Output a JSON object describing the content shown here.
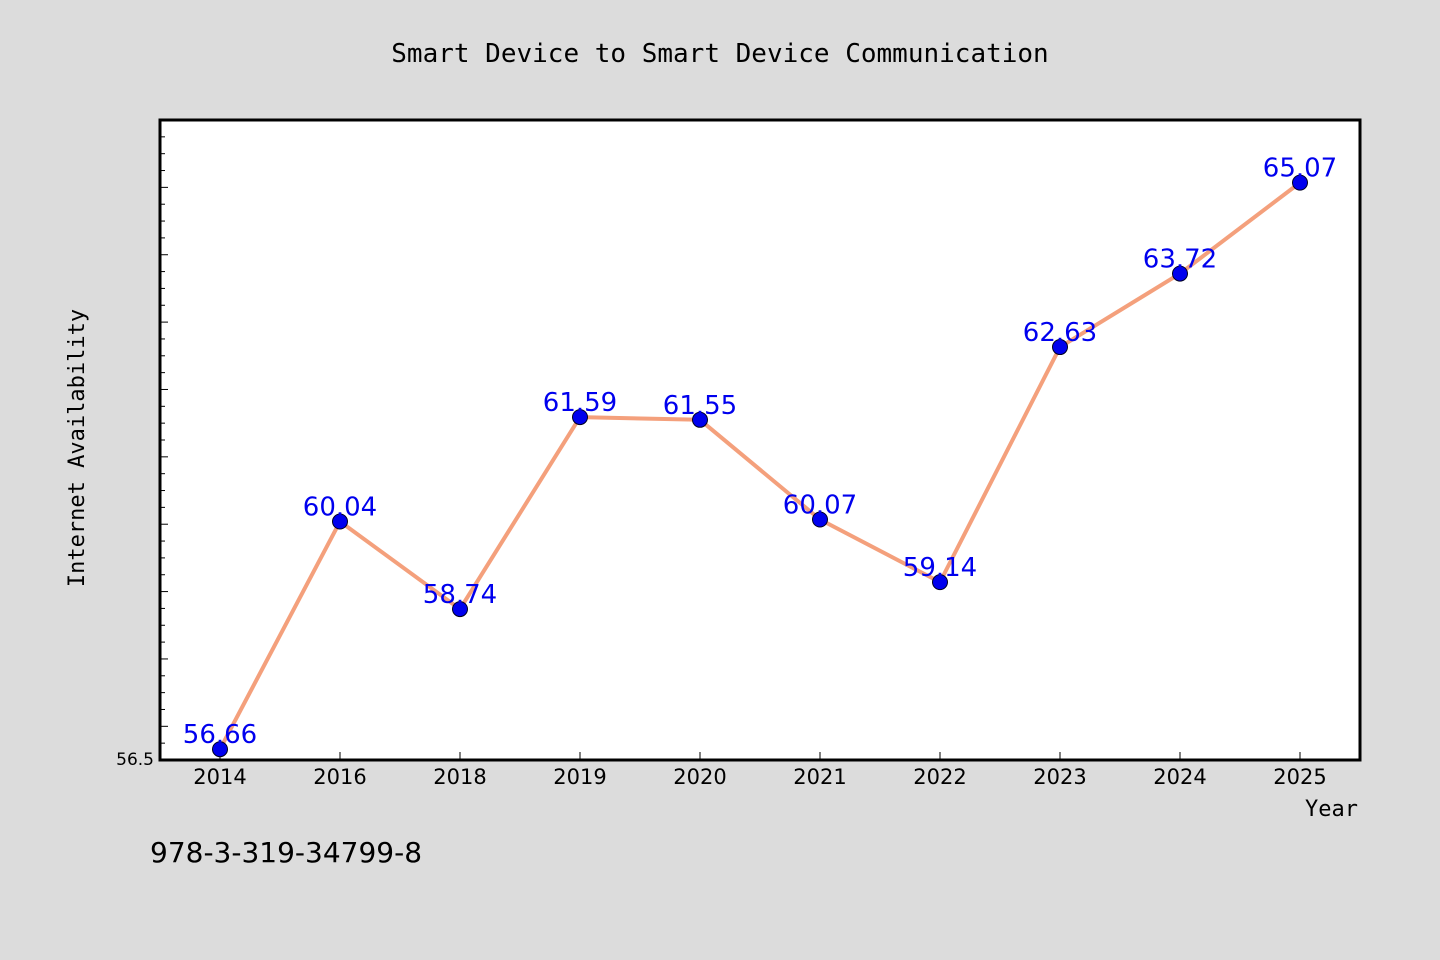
{
  "chart_data": {
    "type": "line",
    "title": "Smart Device to Smart Device Communication",
    "xlabel": "Year",
    "ylabel": "Internet Availability",
    "categories": [
      "2014",
      "2016",
      "2018",
      "2019",
      "2020",
      "2021",
      "2022",
      "2023",
      "2024",
      "2025"
    ],
    "series": [
      {
        "values": [
          56.66,
          60.04,
          58.74,
          61.59,
          61.55,
          60.07,
          59.14,
          62.63,
          63.72,
          65.07
        ]
      }
    ],
    "y_tick_labels": [
      "56.5"
    ],
    "ylim": [
      56.5,
      66.0
    ],
    "grid": false,
    "legend": "none",
    "colors": {
      "line": "#f4a07c",
      "marker": "#0000ee",
      "label": "#0000ee",
      "background": "#dcdcdc",
      "plot_background": "#ffffff"
    }
  },
  "footer": {
    "isbn": "978-3-319-34799-8"
  }
}
